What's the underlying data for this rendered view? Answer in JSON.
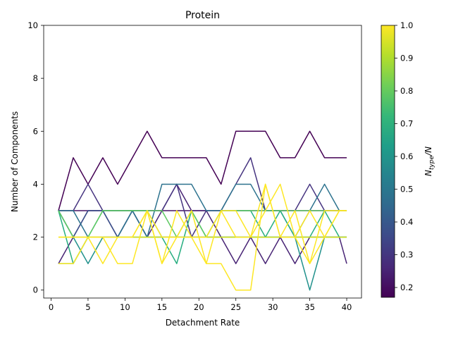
{
  "chart_data": {
    "type": "line",
    "title": "Protein",
    "xlabel": "Detachment Rate",
    "ylabel": "Number of Components",
    "xlim": [
      -1,
      42
    ],
    "ylim": [
      -0.3,
      10
    ],
    "xticks": [
      0,
      5,
      10,
      15,
      20,
      25,
      30,
      35,
      40
    ],
    "yticks": [
      0,
      2,
      4,
      6,
      8,
      10
    ],
    "grid": false,
    "x": [
      1,
      3,
      5,
      7,
      9,
      11,
      13,
      15,
      17,
      19,
      21,
      23,
      25,
      27,
      29,
      31,
      33,
      35,
      37,
      39,
      40
    ],
    "colorbar": {
      "label_main": "N",
      "label_sub": "type",
      "label_suffix": "/N",
      "range": [
        0.17,
        1.0
      ],
      "ticks": [
        "0.2",
        "0.3",
        "0.4",
        "0.5",
        "0.6",
        "0.7",
        "0.8",
        "0.9",
        "1.0"
      ],
      "colormap": [
        "#440154",
        "#482878",
        "#3e4989",
        "#31688e",
        "#26828e",
        "#1f9e89",
        "#35b779",
        "#6ece58",
        "#b5de2b",
        "#fde725"
      ]
    },
    "series": [
      {
        "value": 0.17,
        "color": "#440154",
        "values": [
          3,
          5,
          4,
          5,
          4,
          5,
          6,
          5,
          5,
          5,
          5,
          4,
          6,
          6,
          6,
          5,
          5,
          6,
          5,
          5,
          5
        ]
      },
      {
        "value": 0.22,
        "color": "#471365",
        "values": [
          3,
          3,
          3,
          3,
          3,
          3,
          3,
          3,
          3,
          3,
          3,
          3,
          3,
          3,
          3,
          3,
          3,
          3,
          3,
          3,
          3
        ]
      },
      {
        "value": 0.26,
        "color": "#482475",
        "values": [
          1,
          2,
          3,
          3,
          2,
          3,
          2,
          3,
          4,
          3,
          3,
          2,
          1,
          2,
          1,
          2,
          1,
          2,
          2,
          2,
          1
        ]
      },
      {
        "value": 0.3,
        "color": "#463480",
        "values": [
          3,
          3,
          4,
          3,
          3,
          3,
          3,
          3,
          4,
          2,
          3,
          3,
          4,
          5,
          3,
          3,
          3,
          4,
          3,
          3,
          3
        ]
      },
      {
        "value": 0.38,
        "color": "#3b528b",
        "values": [
          3,
          2,
          3,
          3,
          2,
          3,
          2,
          2,
          2,
          2,
          2,
          2,
          2,
          2,
          2,
          2,
          2,
          2,
          2,
          2,
          2
        ]
      },
      {
        "value": 0.48,
        "color": "#2c728e",
        "values": [
          3,
          3,
          2,
          2,
          2,
          3,
          2,
          4,
          4,
          4,
          3,
          3,
          4,
          4,
          3,
          3,
          2,
          3,
          4,
          3,
          3
        ]
      },
      {
        "value": 0.55,
        "color": "#21918c",
        "values": [
          3,
          2,
          1,
          2,
          2,
          2,
          2,
          2,
          2,
          2,
          2,
          2,
          2,
          2,
          2,
          2,
          2,
          0,
          2,
          2,
          2
        ]
      },
      {
        "value": 0.65,
        "color": "#28ae80",
        "values": [
          3,
          1,
          2,
          3,
          3,
          3,
          3,
          2,
          1,
          3,
          2,
          3,
          3,
          3,
          2,
          3,
          2,
          2,
          3,
          2,
          2
        ]
      },
      {
        "value": 0.72,
        "color": "#3bbb75",
        "values": [
          1,
          1,
          2,
          2,
          2,
          2,
          2,
          2,
          2,
          2,
          2,
          2,
          2,
          2,
          2,
          2,
          2,
          2,
          2,
          2,
          2
        ]
      },
      {
        "value": 0.8,
        "color": "#5ec962",
        "values": [
          3,
          2,
          2,
          3,
          3,
          3,
          3,
          3,
          2,
          3,
          2,
          3,
          3,
          3,
          3,
          3,
          3,
          3,
          3,
          3,
          3
        ]
      },
      {
        "value": 0.95,
        "color": "#d8e219",
        "values": [
          2,
          2,
          2,
          2,
          2,
          2,
          2,
          2,
          2,
          2,
          2,
          2,
          2,
          2,
          2,
          2,
          2,
          2,
          2,
          2,
          2
        ]
      },
      {
        "value": 1.0,
        "color": "#fde725",
        "values": [
          1,
          1,
          2,
          1,
          2,
          2,
          3,
          1,
          2,
          3,
          1,
          3,
          2,
          2,
          4,
          2,
          3,
          1,
          2,
          3,
          3
        ]
      },
      {
        "value": 1.0,
        "color": "#fde725",
        "values": [
          2,
          2,
          2,
          2,
          1,
          1,
          3,
          1,
          3,
          2,
          1,
          1,
          0,
          0,
          4,
          2,
          2,
          1,
          3,
          3,
          3
        ]
      },
      {
        "value": 1.0,
        "color": "#fde725",
        "values": [
          2,
          2,
          2,
          2,
          2,
          2,
          3,
          2,
          2,
          2,
          2,
          3,
          3,
          2,
          3,
          4,
          2,
          3,
          2,
          3,
          3
        ]
      }
    ]
  }
}
